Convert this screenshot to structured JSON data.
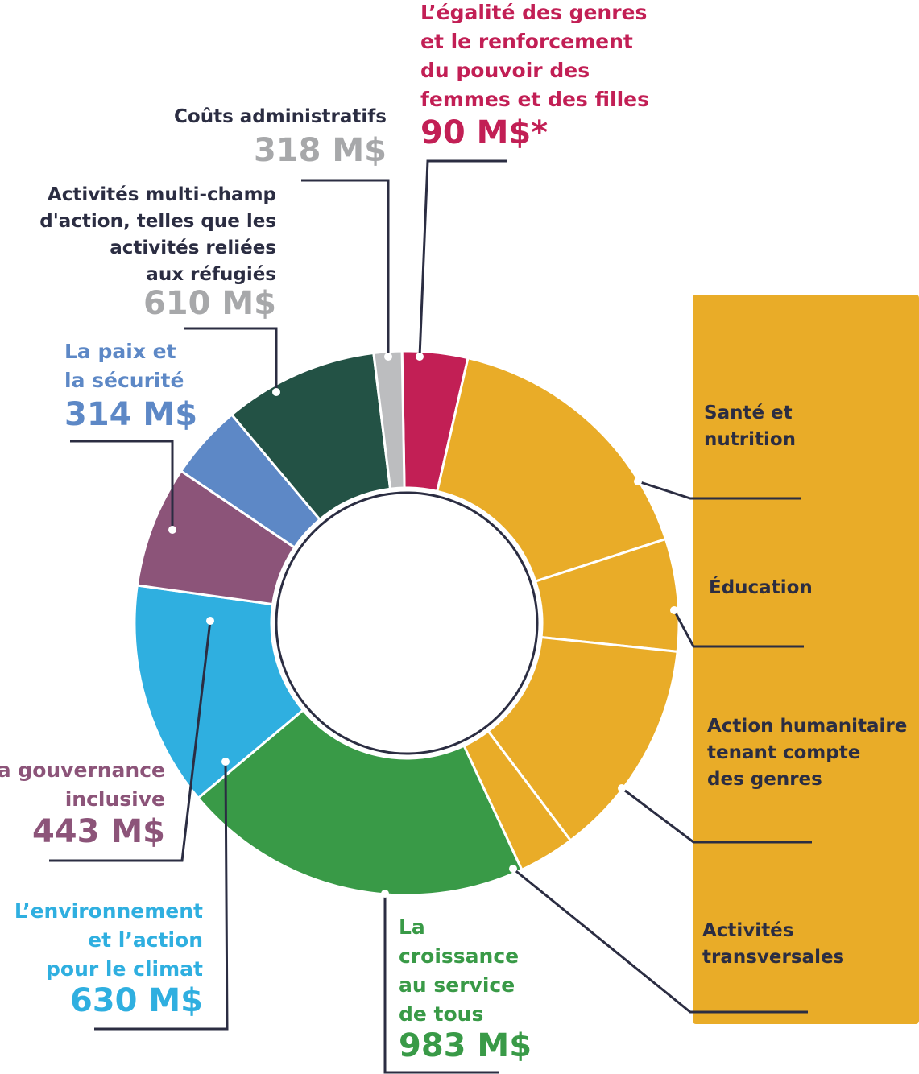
{
  "chart_data": {
    "type": "pie",
    "segments": [
      {
        "key": "gender",
        "label": "L’égalité des genres et le renforcement du pouvoir des femmes et des filles",
        "value": 90,
        "value_label": "90 M$*",
        "color": "#c21f55"
      },
      {
        "key": "sante",
        "label": "Santé et nutrition",
        "value": null,
        "color": "#e9ac28"
      },
      {
        "key": "education",
        "label": "Éducation",
        "value": null,
        "color": "#e9ac28"
      },
      {
        "key": "humanitaire",
        "label": "Action humanitaire tenant compte des genres",
        "value": null,
        "color": "#e9ac28"
      },
      {
        "key": "transversal",
        "label": "Activités transversales",
        "value": null,
        "color": "#e9ac28"
      },
      {
        "key": "croissance",
        "label": "La croissance au service de tous",
        "value": 983,
        "value_label": "983 M$",
        "color": "#399a47"
      },
      {
        "key": "environnement",
        "label": "L’environnement et l’action pour le climat",
        "value": 630,
        "value_label": "630 M$",
        "color": "#2fafe0"
      },
      {
        "key": "gouvernance",
        "label": "La gouvernance inclusive",
        "value": 443,
        "value_label": "443 M$",
        "color": "#8c5479"
      },
      {
        "key": "paix",
        "label": "La paix et la sécurité",
        "value": 314,
        "value_label": "314 M$",
        "color": "#5d88c6"
      },
      {
        "key": "multi",
        "label": "Activités multi-champ d'action, telles que les activités reliées aux réfugiés",
        "value": 610,
        "value_label": "610 M$",
        "color": "#235245"
      },
      {
        "key": "admin",
        "label": "Coûts administratifs",
        "value": 318,
        "value_label": "318 M$",
        "color": "#bcbdbf"
      }
    ]
  },
  "labels": {
    "gender": {
      "lines": [
        "L’égalité des genres",
        "et le renforcement",
        "du pouvoir des",
        "femmes et des filles"
      ],
      "value": "90 M$*"
    },
    "admin": {
      "lines": [
        "Coûts administratifs"
      ],
      "value": "318 M$"
    },
    "multi": {
      "lines": [
        "Activités multi-champ",
        "d'action, telles que les",
        "activités reliées",
        "aux réfugiés"
      ],
      "value": "610 M$"
    },
    "paix": {
      "lines": [
        "La paix et",
        "la sécurité"
      ],
      "value": "314 M$"
    },
    "gouvernance": {
      "lines": [
        "La gouvernance",
        "inclusive"
      ],
      "value": "443 M$"
    },
    "environnement": {
      "lines": [
        "L’environnement",
        "et l’action",
        "pour le climat"
      ],
      "value": "630 M$"
    },
    "croissance": {
      "lines": [
        "La",
        "croissance",
        "au service",
        "de tous"
      ],
      "value": "983 M$"
    },
    "sante": {
      "lines": [
        "Santé et",
        "nutrition"
      ]
    },
    "education": {
      "lines": [
        "Éducation"
      ]
    },
    "humanitaire": {
      "lines": [
        "Action humanitaire",
        "tenant compte",
        "des genres"
      ]
    },
    "transversal": {
      "lines": [
        "Activités",
        "transversales"
      ]
    }
  },
  "colors": {
    "gender": "#c21f55",
    "value_grey": "#a7a8aa",
    "paix": "#5d88c6",
    "gouvernance": "#8c5479",
    "environnement": "#2fafe0",
    "croissance": "#399a47",
    "dark_text": "#2b2d42",
    "leader": "#2b2d42",
    "yellow_panel": "#e9ac28"
  }
}
